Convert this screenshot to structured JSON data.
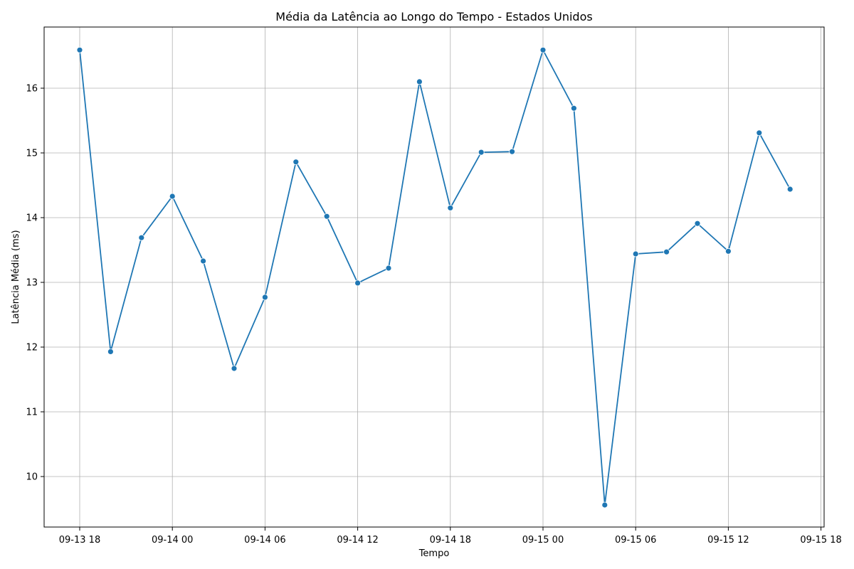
{
  "chart_data": {
    "type": "line",
    "title": "Média da Latência ao Longo do Tempo - Estados Unidos",
    "xlabel": "Tempo",
    "ylabel": "Latência Média (ms)",
    "grid": true,
    "x_tick_labels": [
      "09-13 18",
      "09-14 00",
      "09-14 06",
      "09-14 12",
      "09-14 18",
      "09-15 00",
      "09-15 06",
      "09-15 12",
      "09-15 18"
    ],
    "y_ticks": [
      10,
      11,
      12,
      13,
      14,
      15,
      16
    ],
    "ylim": [
      9.2,
      16.95
    ],
    "color": "#1f77b4",
    "x": [
      "09-13 18",
      "09-13 20",
      "09-13 22",
      "09-14 00",
      "09-14 02",
      "09-14 04",
      "09-14 06",
      "09-14 08",
      "09-14 10",
      "09-14 12",
      "09-14 14",
      "09-14 16",
      "09-14 18",
      "09-14 20",
      "09-14 22",
      "09-15 00",
      "09-15 02",
      "09-15 04",
      "09-15 06",
      "09-15 08",
      "09-15 10",
      "09-15 12",
      "09-15 14",
      "09-15 16"
    ],
    "values": [
      16.59,
      11.93,
      13.69,
      14.33,
      13.33,
      11.67,
      12.77,
      14.86,
      14.02,
      12.99,
      13.22,
      16.1,
      14.15,
      15.01,
      15.02,
      16.59,
      15.69,
      9.56,
      13.44,
      13.47,
      13.91,
      13.48,
      15.31,
      14.44
    ]
  }
}
